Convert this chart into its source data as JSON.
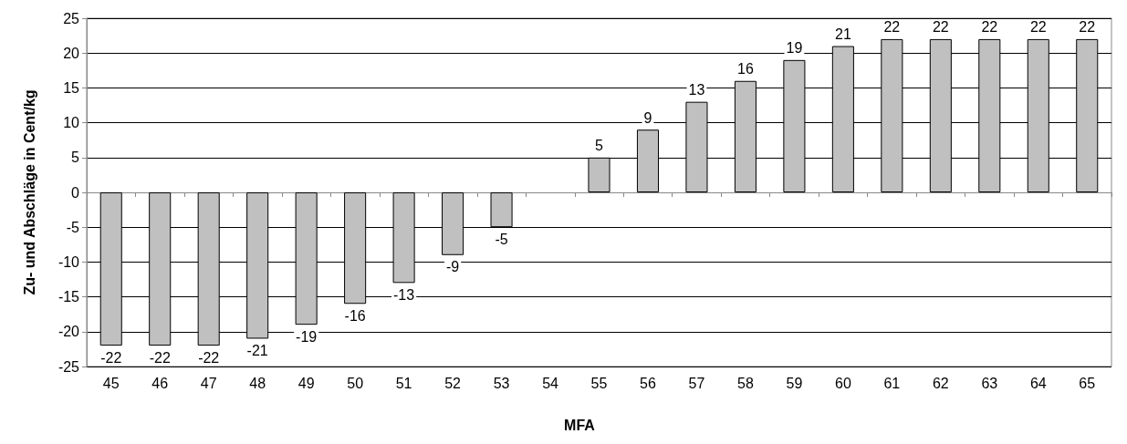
{
  "chart_data": {
    "type": "bar",
    "xlabel": "MFA",
    "ylabel": "Zu- und Abschläge in Cent/kg",
    "categories": [
      "45",
      "46",
      "47",
      "48",
      "49",
      "50",
      "51",
      "52",
      "53",
      "54",
      "55",
      "56",
      "57",
      "58",
      "59",
      "60",
      "61",
      "62",
      "63",
      "64",
      "65"
    ],
    "values": [
      -22,
      -22,
      -22,
      -21,
      -19,
      -16,
      -13,
      -9,
      -5,
      0,
      5,
      9,
      13,
      16,
      19,
      21,
      22,
      22,
      22,
      22,
      22
    ],
    "value_labels": [
      "-22",
      "-22",
      "-22",
      "-21",
      "-19",
      "-16",
      "-13",
      "-9",
      "-5",
      null,
      "5",
      "9",
      "13",
      "16",
      "19",
      "21",
      "22",
      "22",
      "22",
      "22",
      "22"
    ],
    "color": "#c0c0c0",
    "ylim": [
      -25,
      25
    ],
    "yticks": [
      -25,
      -20,
      -15,
      -10,
      -5,
      0,
      5,
      10,
      15,
      20,
      25
    ],
    "grid": "y"
  }
}
